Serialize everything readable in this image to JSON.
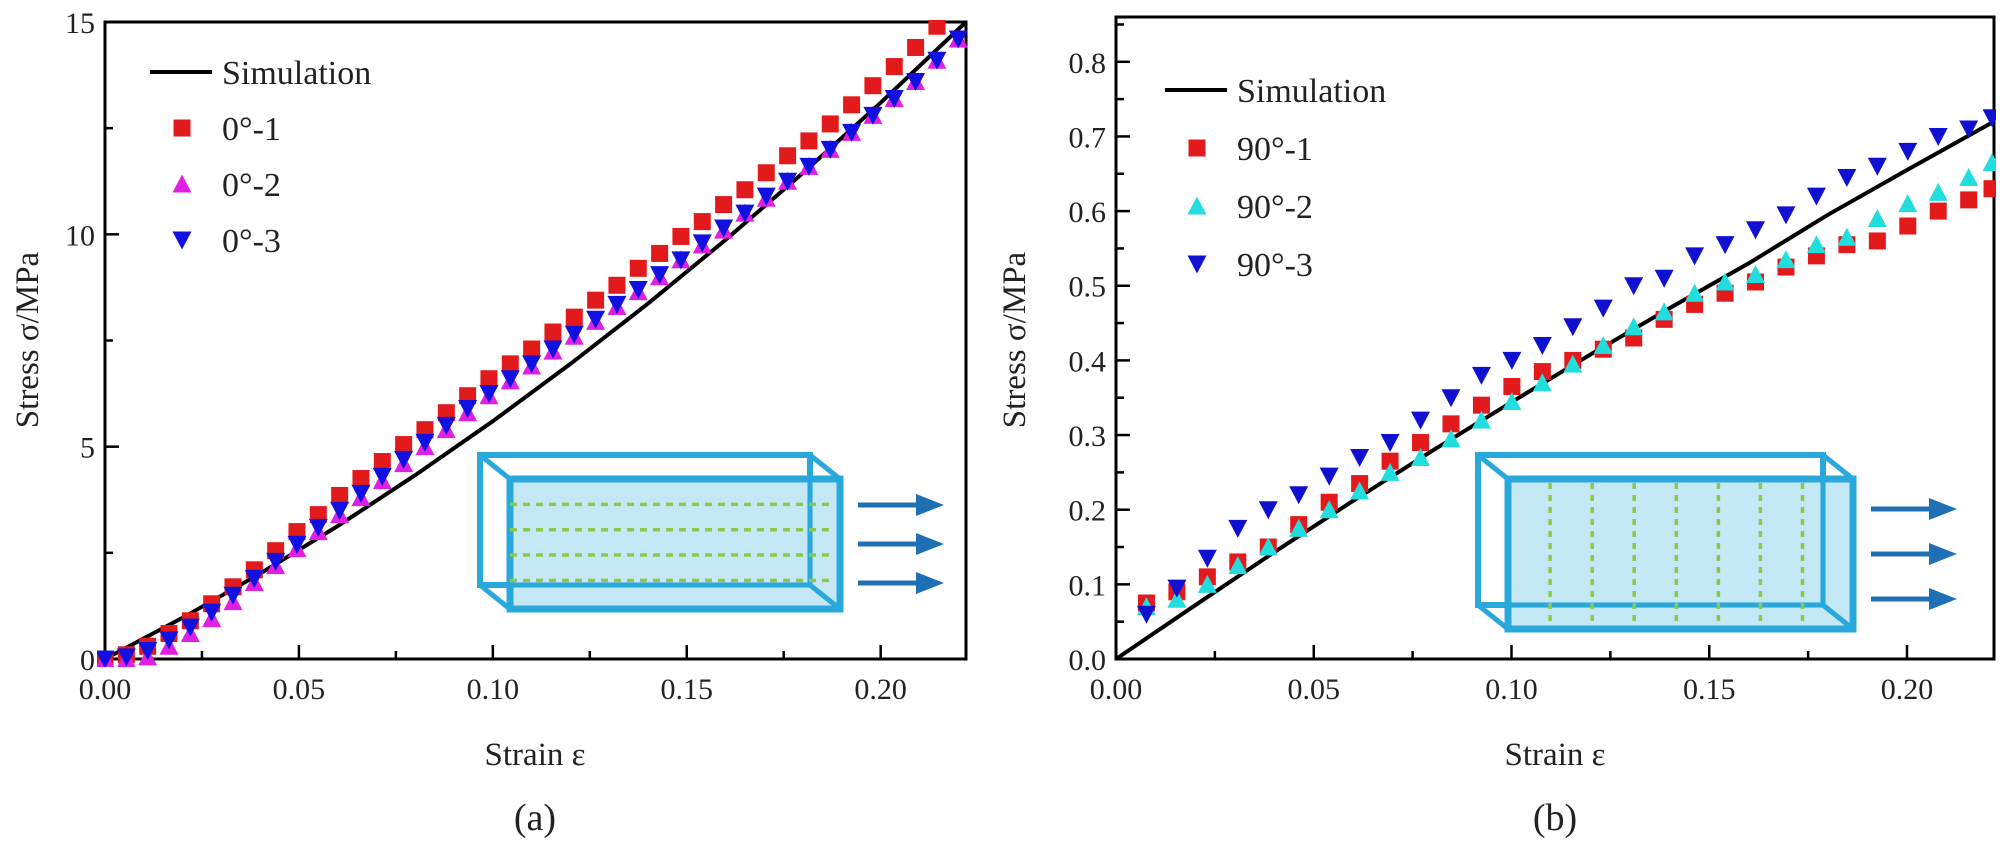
{
  "chart_data": [
    {
      "type": "scatter",
      "panel_label": "(a)",
      "xlabel": "Strain ε",
      "ylabel": "Stress σ/MPa",
      "xlim": [
        0,
        0.222
      ],
      "ylim": [
        0,
        15
      ],
      "xticks": [
        0.0,
        0.05,
        0.1,
        0.15,
        0.2
      ],
      "xtick_labels": [
        "0.00",
        "0.05",
        "0.10",
        "0.15",
        "0.20"
      ],
      "yticks": [
        0,
        5,
        10,
        15
      ],
      "ytick_labels": [
        "0",
        "5",
        "10",
        "15"
      ],
      "legend_position": "top-left",
      "grid": false,
      "inset": "box with longitudinal (0°) fibers, arrows pointing right",
      "series": [
        {
          "name": "Simulation",
          "kind": "line",
          "color": "#000000",
          "x": [
            0,
            0.02,
            0.04,
            0.06,
            0.08,
            0.1,
            0.12,
            0.14,
            0.16,
            0.18,
            0.2,
            0.222
          ],
          "y": [
            0,
            0.97,
            2.01,
            3.13,
            4.33,
            5.6,
            6.95,
            8.37,
            9.87,
            11.45,
            13.1,
            15.0
          ]
        },
        {
          "name": "0°-1",
          "kind": "square",
          "color": "#e31a1c",
          "x": [
            0.0,
            0.0055,
            0.011,
            0.0165,
            0.022,
            0.0275,
            0.033,
            0.0385,
            0.044,
            0.0495,
            0.055,
            0.0605,
            0.066,
            0.0715,
            0.077,
            0.0825,
            0.088,
            0.0935,
            0.099,
            0.1045,
            0.11,
            0.1155,
            0.121,
            0.1265,
            0.132,
            0.1375,
            0.143,
            0.1485,
            0.154,
            0.1595,
            0.165,
            0.1705,
            0.176,
            0.1815,
            0.187,
            0.1925,
            0.198,
            0.2035,
            0.209,
            0.2145
          ],
          "y": [
            0.0,
            0.1,
            0.3,
            0.6,
            0.9,
            1.3,
            1.7,
            2.1,
            2.55,
            3.0,
            3.4,
            3.85,
            4.25,
            4.65,
            5.05,
            5.4,
            5.8,
            6.2,
            6.6,
            6.95,
            7.3,
            7.7,
            8.05,
            8.45,
            8.8,
            9.2,
            9.55,
            9.95,
            10.3,
            10.7,
            11.05,
            11.45,
            11.85,
            12.2,
            12.6,
            13.05,
            13.5,
            13.95,
            14.4,
            14.9
          ]
        },
        {
          "name": "0°-2",
          "kind": "triangle-up",
          "color": "#e020e0",
          "x": [
            0.0,
            0.0055,
            0.011,
            0.0165,
            0.022,
            0.0275,
            0.033,
            0.0385,
            0.044,
            0.0495,
            0.055,
            0.0605,
            0.066,
            0.0715,
            0.077,
            0.0825,
            0.088,
            0.0935,
            0.099,
            0.1045,
            0.11,
            0.1155,
            0.121,
            0.1265,
            0.132,
            0.1375,
            0.143,
            0.1485,
            0.154,
            0.1595,
            0.165,
            0.1705,
            0.176,
            0.1815,
            0.187,
            0.1925,
            0.198,
            0.2035,
            0.209,
            0.2145,
            0.22
          ],
          "y": [
            0.0,
            0.0,
            0.05,
            0.3,
            0.6,
            0.95,
            1.35,
            1.8,
            2.2,
            2.6,
            3.0,
            3.4,
            3.8,
            4.2,
            4.6,
            5.0,
            5.4,
            5.8,
            6.2,
            6.55,
            6.9,
            7.25,
            7.6,
            7.95,
            8.3,
            8.65,
            9.0,
            9.4,
            9.75,
            10.1,
            10.5,
            10.85,
            11.25,
            11.6,
            12.0,
            12.4,
            12.8,
            13.2,
            13.6,
            14.1,
            14.6
          ]
        },
        {
          "name": "0°-3",
          "kind": "triangle-down",
          "color": "#1010e0",
          "x": [
            0.0,
            0.0055,
            0.011,
            0.0165,
            0.022,
            0.0275,
            0.033,
            0.0385,
            0.044,
            0.0495,
            0.055,
            0.0605,
            0.066,
            0.0715,
            0.077,
            0.0825,
            0.088,
            0.0935,
            0.099,
            0.1045,
            0.11,
            0.1155,
            0.121,
            0.1265,
            0.132,
            0.1375,
            0.143,
            0.1485,
            0.154,
            0.1595,
            0.165,
            0.1705,
            0.176,
            0.1815,
            0.187,
            0.1925,
            0.198,
            0.2035,
            0.209,
            0.2145,
            0.22
          ],
          "y": [
            0.0,
            0.05,
            0.2,
            0.45,
            0.75,
            1.1,
            1.5,
            1.9,
            2.3,
            2.7,
            3.1,
            3.5,
            3.9,
            4.3,
            4.7,
            5.1,
            5.5,
            5.9,
            6.25,
            6.6,
            6.95,
            7.3,
            7.65,
            8.0,
            8.35,
            8.7,
            9.05,
            9.4,
            9.8,
            10.15,
            10.5,
            10.9,
            11.25,
            11.6,
            12.0,
            12.4,
            12.8,
            13.2,
            13.6,
            14.1,
            14.6
          ]
        }
      ]
    },
    {
      "type": "scatter",
      "panel_label": "(b)",
      "xlabel": "Strain ε",
      "ylabel": "Stress σ/MPa",
      "xlim": [
        0,
        0.222
      ],
      "ylim": [
        0,
        0.86
      ],
      "xticks": [
        0.0,
        0.05,
        0.1,
        0.15,
        0.2
      ],
      "xtick_labels": [
        "0.00",
        "0.05",
        "0.10",
        "0.15",
        "0.20"
      ],
      "yticks": [
        0.0,
        0.1,
        0.2,
        0.3,
        0.4,
        0.5,
        0.6,
        0.7,
        0.8
      ],
      "ytick_labels": [
        "0.0",
        "0.1",
        "0.2",
        "0.3",
        "0.4",
        "0.5",
        "0.6",
        "0.7",
        "0.8"
      ],
      "legend_position": "top-left",
      "grid": false,
      "inset": "box with transverse (90°) fibers, arrows pointing right",
      "series": [
        {
          "name": "Simulation",
          "kind": "line",
          "color": "#000000",
          "x": [
            0,
            0.02,
            0.04,
            0.06,
            0.08,
            0.1,
            0.12,
            0.14,
            0.16,
            0.18,
            0.2,
            0.222
          ],
          "y": [
            0,
            0.072,
            0.143,
            0.212,
            0.279,
            0.344,
            0.408,
            0.47,
            0.53,
            0.595,
            0.655,
            0.72
          ]
        },
        {
          "name": "90°-1",
          "kind": "square",
          "color": "#e31a1c",
          "x": [
            0.0077,
            0.0154,
            0.0231,
            0.0308,
            0.0385,
            0.0462,
            0.0539,
            0.0616,
            0.0693,
            0.077,
            0.0847,
            0.0924,
            0.1001,
            0.1078,
            0.1155,
            0.1232,
            0.1309,
            0.1386,
            0.1463,
            0.154,
            0.1617,
            0.1694,
            0.1771,
            0.1848,
            0.1925,
            0.2002,
            0.2079,
            0.2156,
            0.2215
          ],
          "y": [
            0.075,
            0.09,
            0.11,
            0.13,
            0.15,
            0.18,
            0.21,
            0.235,
            0.265,
            0.29,
            0.315,
            0.34,
            0.365,
            0.385,
            0.4,
            0.415,
            0.43,
            0.455,
            0.475,
            0.49,
            0.505,
            0.525,
            0.54,
            0.555,
            0.56,
            0.58,
            0.6,
            0.615,
            0.63
          ]
        },
        {
          "name": "90°-2",
          "kind": "triangle-up",
          "color": "#22dddd",
          "x": [
            0.0077,
            0.0154,
            0.0231,
            0.0308,
            0.0385,
            0.0462,
            0.0539,
            0.0616,
            0.0693,
            0.077,
            0.0847,
            0.0924,
            0.1001,
            0.1078,
            0.1155,
            0.1232,
            0.1309,
            0.1386,
            0.1463,
            0.154,
            0.1617,
            0.1694,
            0.1771,
            0.1848,
            0.1925,
            0.2002,
            0.2079,
            0.2156,
            0.2215
          ],
          "y": [
            0.07,
            0.08,
            0.1,
            0.125,
            0.15,
            0.175,
            0.2,
            0.225,
            0.25,
            0.27,
            0.295,
            0.32,
            0.345,
            0.37,
            0.395,
            0.42,
            0.445,
            0.465,
            0.49,
            0.505,
            0.515,
            0.535,
            0.555,
            0.565,
            0.59,
            0.61,
            0.625,
            0.645,
            0.665
          ]
        },
        {
          "name": "90°-3",
          "kind": "triangle-down",
          "color": "#1010d0",
          "x": [
            0.0077,
            0.0154,
            0.0231,
            0.0308,
            0.0385,
            0.0462,
            0.0539,
            0.0616,
            0.0693,
            0.077,
            0.0847,
            0.0924,
            0.1001,
            0.1078,
            0.1155,
            0.1232,
            0.1309,
            0.1386,
            0.1463,
            0.154,
            0.1617,
            0.1694,
            0.1771,
            0.1848,
            0.1925,
            0.2002,
            0.2079,
            0.2156,
            0.2215
          ],
          "y": [
            0.06,
            0.095,
            0.135,
            0.175,
            0.2,
            0.22,
            0.245,
            0.27,
            0.29,
            0.32,
            0.35,
            0.38,
            0.4,
            0.42,
            0.445,
            0.47,
            0.5,
            0.51,
            0.54,
            0.555,
            0.575,
            0.595,
            0.62,
            0.645,
            0.66,
            0.68,
            0.7,
            0.71,
            0.725
          ]
        }
      ]
    }
  ]
}
